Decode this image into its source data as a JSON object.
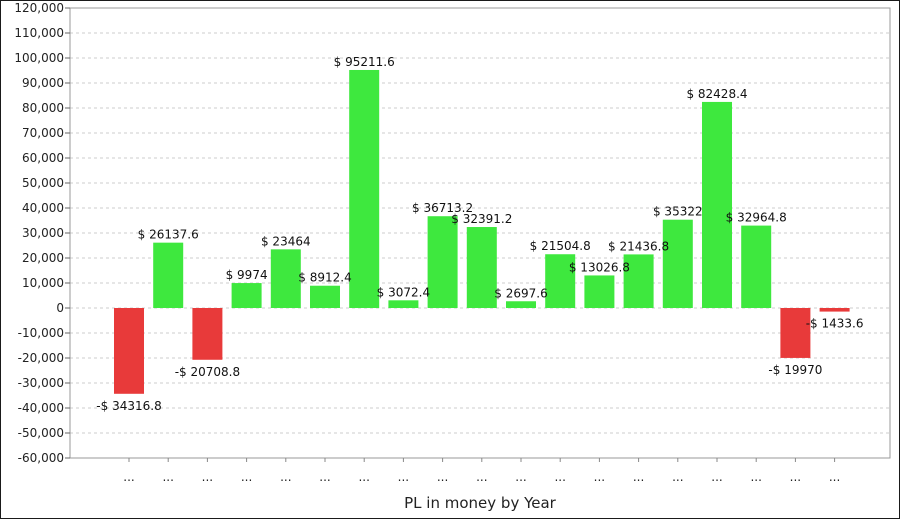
{
  "chart_data": {
    "type": "bar",
    "xlabel": "PL in money by Year",
    "ylabel": "",
    "ylim": [
      -60000,
      120000
    ],
    "y_ticks": [
      120000,
      110000,
      100000,
      90000,
      80000,
      70000,
      60000,
      50000,
      40000,
      30000,
      20000,
      10000,
      0,
      -10000,
      -20000,
      -30000,
      -40000,
      -50000,
      -60000
    ],
    "y_tick_labels": [
      "120,000",
      "110,000",
      "100,000",
      "90,000",
      "80,000",
      "70,000",
      "60,000",
      "50,000",
      "40,000",
      "30,000",
      "20,000",
      "10,000",
      "0",
      "-10,000",
      "-20,000",
      "-30,000",
      "-40,000",
      "-50,000",
      "-60,000"
    ],
    "categories": [
      "...",
      "...",
      "...",
      "...",
      "...",
      "...",
      "...",
      "...",
      "...",
      "...",
      "...",
      "...",
      "...",
      "...",
      "...",
      "...",
      "...",
      "...",
      "..."
    ],
    "values": [
      -34316.8,
      26137.6,
      -20708.8,
      9974,
      23464,
      8912.4,
      95211.6,
      3072.4,
      36713.2,
      32391.2,
      2697.6,
      21504.8,
      13026.8,
      21436.8,
      35322,
      82428.4,
      32964.8,
      -19970,
      -1433.6
    ],
    "data_labels": [
      "-$ 34316.8",
      "$ 26137.6",
      "-$ 20708.8",
      "$ 9974",
      "$ 23464",
      "$ 8912.4",
      "$ 95211.6",
      "$ 3072.4",
      "$ 36713.2",
      "$ 32391.2",
      "$ 2697.6",
      "$ 21504.8",
      "$ 13026.8",
      "$ 21436.8",
      "$ 35322",
      "$ 82428.4",
      "$ 32964.8",
      "-$ 19970",
      "-$ 1433.6"
    ],
    "positive_color": "#3ee83e",
    "negative_color": "#e83a3a",
    "grid": true
  }
}
